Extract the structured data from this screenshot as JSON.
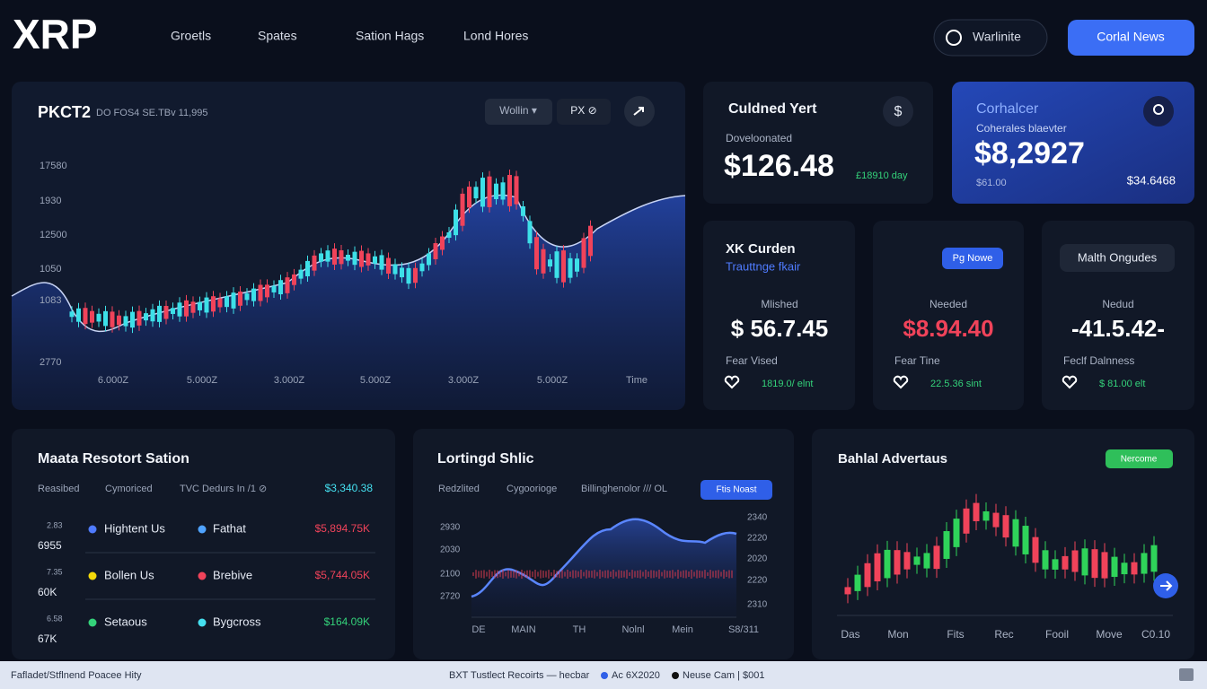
{
  "nav": {
    "logo": "XRP",
    "links": [
      "Groetls",
      "Spates",
      "Sation Hags",
      "Lond Hores"
    ],
    "search": "Warlinite",
    "button": "Corlal News"
  },
  "main_chart": {
    "title": "PKCT2",
    "subtitle": "DO FOS4 SE.TBv 11,995",
    "controls": [
      "Wollin ▾",
      "PX ⊘"
    ],
    "y_labels": [
      "17580",
      "1930",
      "12500",
      "1050",
      "1083",
      "2770"
    ],
    "x_labels": [
      "6.000Z",
      "5.000Z",
      "3.000Z",
      "5.000Z",
      "3.000Z",
      "5.000Z",
      "Time"
    ]
  },
  "stats": [
    {
      "title": "Culdned Yert",
      "label": "Doveloonated",
      "value": "$126.48",
      "change": "£18910 day"
    },
    {
      "title": "Corhalcer",
      "label": "Coherales blaevter",
      "value": "$8,2927",
      "sub_left": "$61.00",
      "sub_right": "$34.6468"
    }
  ],
  "cards": [
    {
      "title": "XK Curden",
      "subtitle": "Trauttnge fkair",
      "label": "Mlished",
      "value": "$ 56.7.45",
      "footer": "Fear Vised",
      "change": "1819.0/ elnt"
    },
    {
      "button": "Pg Nowe",
      "label": "Needed",
      "value": "$8.94.40",
      "footer": "Fear Tine",
      "change": "22.5.36 sint"
    },
    {
      "pill": "Malth Ongudes",
      "label": "Nedud",
      "value": "-41.5.42-",
      "footer": "Feclf Dalnness",
      "change": "$ 81.00 elt"
    }
  ],
  "table_panel": {
    "title": "Maata Resotort Sation",
    "headers": [
      "Reasibed",
      "Cymoriced",
      "TVC Dedurs In /1 ⊘",
      "$3,340.38"
    ],
    "rows": [
      {
        "small": "2.83",
        "count": "6955",
        "a": "Hightent Us",
        "b": "Fathat",
        "amount": "$5,894.75K"
      },
      {
        "small": "7.35",
        "count": "60K",
        "a": "Bollen Us",
        "b": "Brebive",
        "amount": "$5,744.05K"
      },
      {
        "small": "6.58",
        "count": "67K",
        "a": "Setaous",
        "b": "Bygcross",
        "amount": "$164.09K"
      }
    ]
  },
  "line_panel": {
    "title": "Lortingd Shlic",
    "headers": [
      "Redzlited",
      "Cygoorioge",
      "Billinghenolor /// OL"
    ],
    "button": "Ftis Noast",
    "left_labels": [
      "2930",
      "2030",
      "2100",
      "2720"
    ],
    "right_labels": [
      "2340",
      "2220",
      "2020",
      "2220",
      "2310"
    ],
    "x_labels": [
      "DE",
      "MAIN",
      "TH",
      "Nolnl",
      "Mein",
      "S8/311"
    ]
  },
  "candle_panel": {
    "title": "Bahlal Advertaus",
    "pill": "Nercome",
    "x_labels": [
      "Das",
      "Mon",
      "Fits",
      "Rec",
      "Fooil",
      "Move",
      "C0.10"
    ]
  },
  "footer": {
    "left": "Fafladet/Stflnend Poacee Hity",
    "center": "BXT Tustlect Recoirts — hecbar",
    "item1": "Ac 6X2020",
    "item2": "Neuse Cam | $001"
  }
}
